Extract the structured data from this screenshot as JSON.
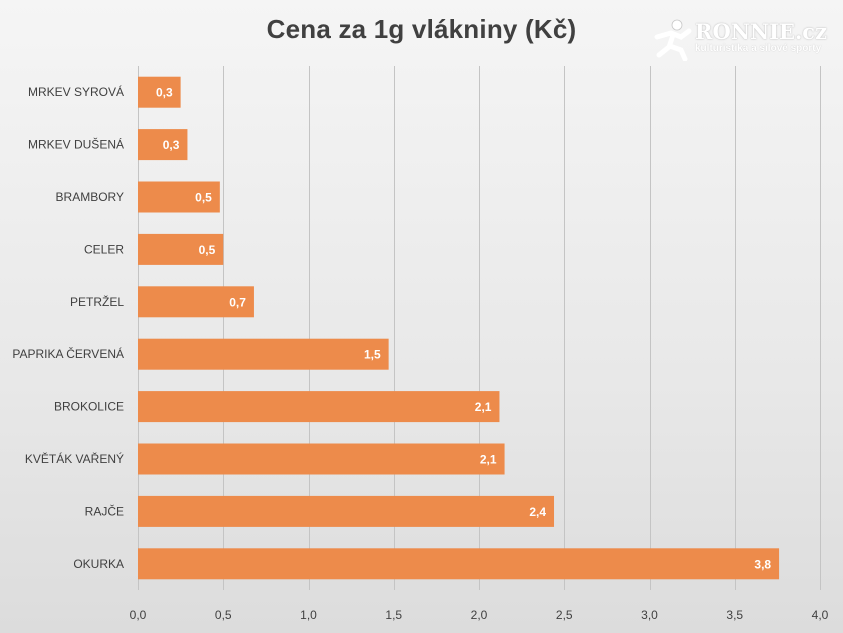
{
  "chart_data": {
    "type": "bar",
    "orientation": "horizontal",
    "title": "Cena za 1g vlákniny (Kč)",
    "categories": [
      "MRKEV SYROVÁ",
      "MRKEV DUŠENÁ",
      "BRAMBORY",
      "CELER",
      "PETRŽEL",
      "PAPRIKA ČERVENÁ",
      "BROKOLICE",
      "KVĚTÁK VAŘENÝ",
      "RAJČE",
      "OKURKA"
    ],
    "values": [
      0.25,
      0.29,
      0.48,
      0.5,
      0.68,
      1.47,
      2.12,
      2.15,
      2.44,
      3.76
    ],
    "data_labels": [
      "0,3",
      "0,3",
      "0,5",
      "0,5",
      "0,7",
      "1,5",
      "2,1",
      "2,1",
      "2,4",
      "3,8"
    ],
    "xlim": [
      0,
      4
    ],
    "x_ticks": [
      0,
      0.5,
      1,
      1.5,
      2,
      2.5,
      3,
      3.5,
      4
    ],
    "x_tick_labels": [
      "0,0",
      "0,5",
      "1,0",
      "1,5",
      "2,0",
      "2,5",
      "3,0",
      "3,5",
      "4,0"
    ],
    "xlabel": "",
    "ylabel": "",
    "grid": "vertical",
    "legend": "none",
    "bar_color": "#ed8b4b",
    "gridline_color": "#c4c4c4",
    "label_color": "#404040"
  },
  "watermark": {
    "brand": "RONNIE.cz",
    "tagline": "kulturistika a silové sporty",
    "icon": "runner-figure-icon"
  }
}
